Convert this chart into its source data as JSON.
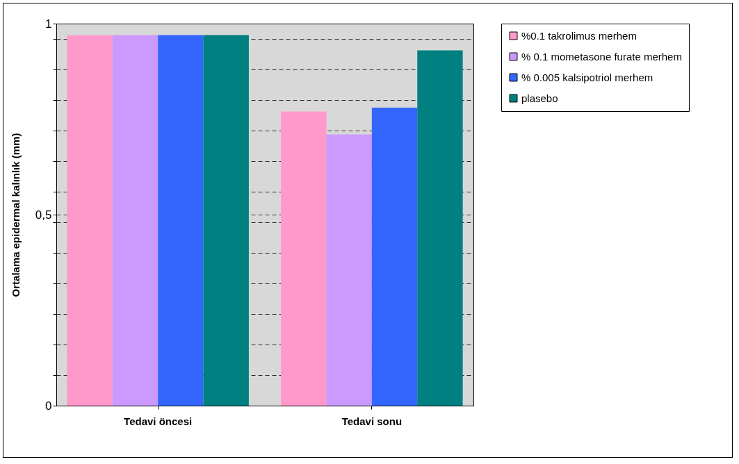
{
  "chart_data": {
    "type": "bar",
    "ylabel": "Ortalama epidermal kalınlık (mm)",
    "categories": [
      "Tedavi öncesi",
      "Tedavi sonu"
    ],
    "series": [
      {
        "name": "%0.1 takrolimus merhem",
        "color": "#ff99cc",
        "values": [
          0.97,
          0.77
        ]
      },
      {
        "name": "% 0.1 mometasone furate merhem",
        "color": "#cc99ff",
        "values": [
          0.97,
          0.71
        ]
      },
      {
        "name": "% 0.005 kalsipotriol merhem",
        "color": "#3366ff",
        "values": [
          0.97,
          0.78
        ]
      },
      {
        "name": "plasebo",
        "color": "#008080",
        "values": [
          0.97,
          0.93
        ]
      }
    ],
    "ylim": [
      0,
      1
    ],
    "yticks": [
      0,
      {
        "value": 0.08,
        "label": null
      },
      {
        "value": 0.16,
        "label": null
      },
      {
        "value": 0.24,
        "label": null
      },
      {
        "value": 0.32,
        "label": null
      },
      {
        "value": 0.4,
        "label": null
      },
      {
        "value": 0.48,
        "label": null
      },
      {
        "value": 0.5,
        "label": "0,5"
      },
      {
        "value": 0.56,
        "label": null
      },
      {
        "value": 0.64,
        "label": null
      },
      {
        "value": 0.72,
        "label": null
      },
      {
        "value": 0.8,
        "label": null
      },
      {
        "value": 0.88,
        "label": null
      },
      {
        "value": 0.96,
        "label": null
      },
      1
    ],
    "grid": "y",
    "legend": "right"
  }
}
